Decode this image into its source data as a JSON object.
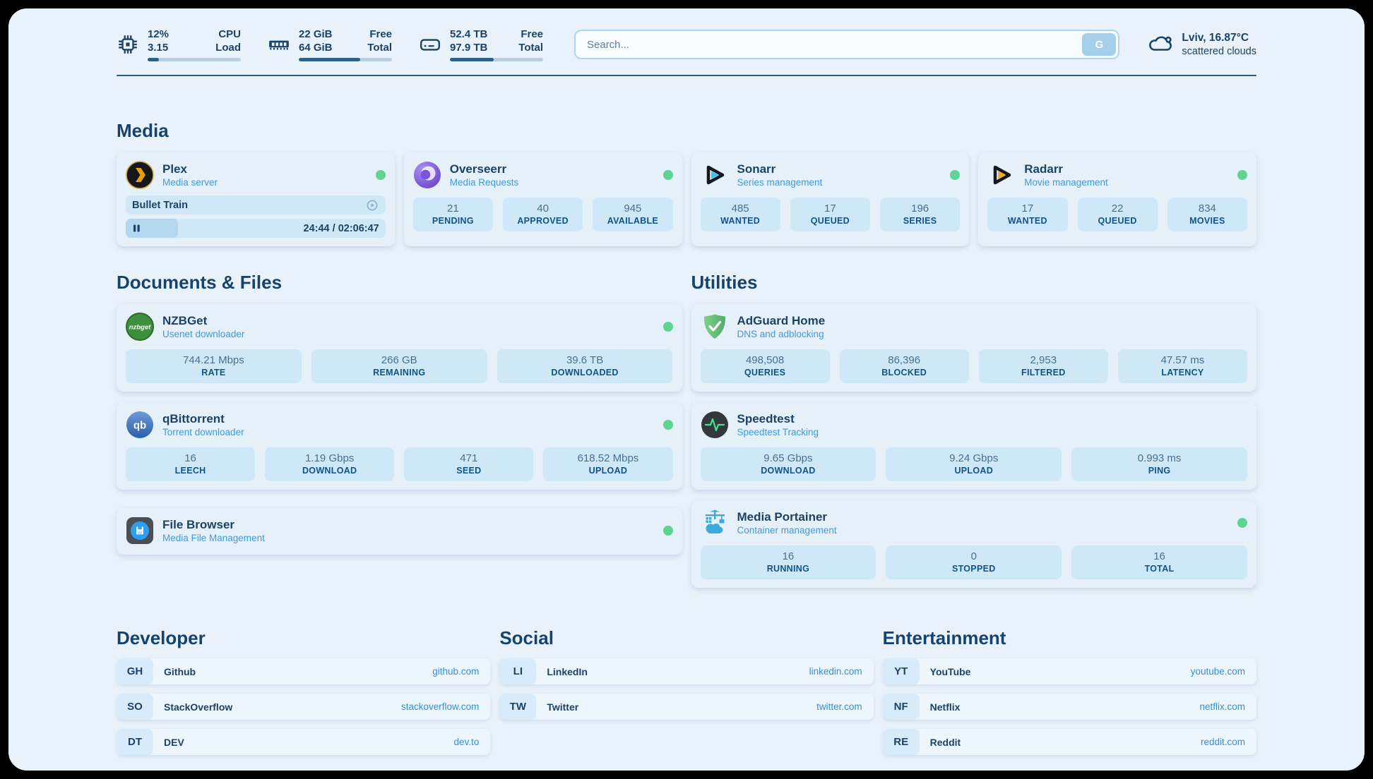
{
  "colors": {
    "status_online": "#5ed492",
    "link_blue": "#2e8fe0",
    "text_navy": "#1c4267"
  },
  "header": {
    "cpu": {
      "icon": "cpu-icon",
      "value_top": "12%",
      "value_bottom": "3.15",
      "label_top": "CPU",
      "label_bottom": "Load",
      "progress_pct": 12
    },
    "ram": {
      "icon": "ram-icon",
      "value_top": "22 GiB",
      "value_bottom": "64 GiB",
      "label_top": "Free",
      "label_bottom": "Total",
      "progress_pct": 66
    },
    "disk": {
      "icon": "disk-icon",
      "value_top": "52.4 TB",
      "value_bottom": "97.9 TB",
      "label_top": "Free",
      "label_bottom": "Total",
      "progress_pct": 47
    },
    "search": {
      "placeholder": "Search...",
      "button_label": "G"
    },
    "weather": {
      "icon": "cloud-icon",
      "location_temp": "Lviv, 16.87°C",
      "condition": "scattered clouds"
    }
  },
  "sections": {
    "media": "Media",
    "documents": "Documents & Files",
    "utilities": "Utilities",
    "developer": "Developer",
    "social": "Social",
    "entertainment": "Entertainment"
  },
  "apps": {
    "plex": {
      "icon": "plex-icon",
      "name": "Plex",
      "subtitle": "Media server",
      "status": "online",
      "now_playing": {
        "title": "Bullet Train",
        "progress_pct": 20,
        "time_display": "24:44 / 02:06:47"
      }
    },
    "overseerr": {
      "icon": "overseerr-icon",
      "name": "Overseerr",
      "subtitle": "Media Requests",
      "status": "online",
      "stats": [
        {
          "value": "21",
          "label": "PENDING"
        },
        {
          "value": "40",
          "label": "APPROVED"
        },
        {
          "value": "945",
          "label": "AVAILABLE"
        }
      ]
    },
    "sonarr": {
      "icon": "sonarr-icon",
      "name": "Sonarr",
      "subtitle": "Series management",
      "status": "online",
      "stats": [
        {
          "value": "485",
          "label": "WANTED"
        },
        {
          "value": "17",
          "label": "QUEUED"
        },
        {
          "value": "196",
          "label": "SERIES"
        }
      ]
    },
    "radarr": {
      "icon": "radarr-icon",
      "name": "Radarr",
      "subtitle": "Movie management",
      "status": "online",
      "stats": [
        {
          "value": "17",
          "label": "WANTED"
        },
        {
          "value": "22",
          "label": "QUEUED"
        },
        {
          "value": "834",
          "label": "MOVIES"
        }
      ]
    },
    "nzbget": {
      "icon": "nzbget-icon",
      "logo_text": "nzbget",
      "name": "NZBGet",
      "subtitle": "Usenet downloader",
      "status": "online",
      "stats": [
        {
          "value": "744.21 Mbps",
          "label": "RATE"
        },
        {
          "value": "266 GB",
          "label": "REMAINING"
        },
        {
          "value": "39.6 TB",
          "label": "DOWNLOADED"
        }
      ]
    },
    "qbittorrent": {
      "icon": "qbittorrent-icon",
      "logo_text": "qb",
      "name": "qBittorrent",
      "subtitle": "Torrent downloader",
      "status": "online",
      "stats": [
        {
          "value": "16",
          "label": "LEECH"
        },
        {
          "value": "1.19 Gbps",
          "label": "DOWNLOAD"
        },
        {
          "value": "471",
          "label": "SEED"
        },
        {
          "value": "618.52 Mbps",
          "label": "UPLOAD"
        }
      ]
    },
    "filebrowser": {
      "icon": "filebrowser-icon",
      "name": "File Browser",
      "subtitle": "Media File Management",
      "status": "online"
    },
    "adguard": {
      "icon": "adguard-icon",
      "name": "AdGuard Home",
      "subtitle": "DNS and adblocking",
      "stats": [
        {
          "value": "498,508",
          "label": "QUERIES"
        },
        {
          "value": "86,396",
          "label": "BLOCKED"
        },
        {
          "value": "2,953",
          "label": "FILTERED"
        },
        {
          "value": "47.57 ms",
          "label": "LATENCY"
        }
      ]
    },
    "speedtest": {
      "icon": "speedtest-icon",
      "name": "Speedtest",
      "subtitle": "Speedtest Tracking",
      "stats": [
        {
          "value": "9.65 Gbps",
          "label": "DOWNLOAD"
        },
        {
          "value": "9.24 Gbps",
          "label": "UPLOAD"
        },
        {
          "value": "0.993 ms",
          "label": "PING"
        }
      ]
    },
    "portainer": {
      "icon": "portainer-icon",
      "name": "Media Portainer",
      "subtitle": "Container management",
      "status": "online",
      "stats": [
        {
          "value": "16",
          "label": "RUNNING"
        },
        {
          "value": "0",
          "label": "STOPPED"
        },
        {
          "value": "16",
          "label": "TOTAL"
        }
      ]
    }
  },
  "links": {
    "developer": [
      {
        "badge": "GH",
        "name": "Github",
        "url": "github.com"
      },
      {
        "badge": "SO",
        "name": "StackOverflow",
        "url": "stackoverflow.com"
      },
      {
        "badge": "DT",
        "name": "DEV",
        "url": "dev.to"
      }
    ],
    "social": [
      {
        "badge": "LI",
        "name": "LinkedIn",
        "url": "linkedin.com"
      },
      {
        "badge": "TW",
        "name": "Twitter",
        "url": "twitter.com"
      }
    ],
    "entertainment": [
      {
        "badge": "YT",
        "name": "YouTube",
        "url": "youtube.com"
      },
      {
        "badge": "NF",
        "name": "Netflix",
        "url": "netflix.com"
      },
      {
        "badge": "RE",
        "name": "Reddit",
        "url": "reddit.com"
      }
    ]
  }
}
